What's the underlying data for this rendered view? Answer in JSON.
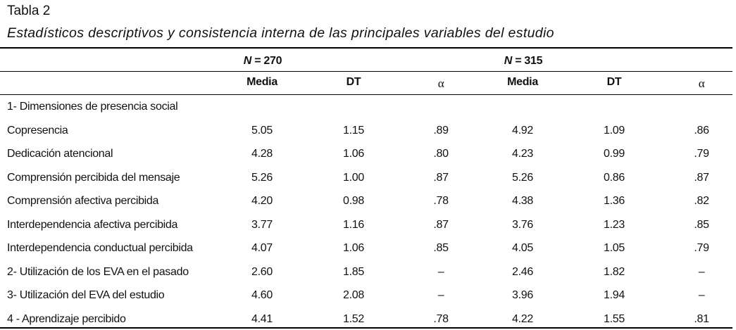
{
  "header": {
    "label": "Tabla 2",
    "title": "Estadísticos descriptivos y consistencia interna de las principales variables del estudio"
  },
  "table": {
    "groups": [
      {
        "n": "N",
        "text": " = 270"
      },
      {
        "n": "N",
        "text": " = 315"
      }
    ],
    "columns": [
      "Media",
      "DT",
      "α",
      "Media",
      "DT",
      "α"
    ],
    "rows": [
      [
        "1- Dimensiones de presencia social"
      ],
      [
        "Copresencia",
        "5.05",
        "1.15",
        ".89",
        "4.92",
        "1.09",
        ".86"
      ],
      [
        "Dedicación atencional",
        "4.28",
        "1.06",
        ".80",
        "4.23",
        "0.99",
        ".79"
      ],
      [
        "Comprensión percibida del mensaje",
        "5.26",
        "1.00",
        ".87",
        "5.26",
        "0.86",
        ".87"
      ],
      [
        "Comprensión afectiva percibida",
        "4.20",
        "0.98",
        ".78",
        "4.38",
        "1.36",
        ".82"
      ],
      [
        "Interdependencia afectiva percibida",
        "3.77",
        "1.16",
        ".87",
        "3.76",
        "1.23",
        ".85"
      ],
      [
        "Interdependencia conductual percibida",
        "4.07",
        "1.06",
        ".85",
        "4.05",
        "1.05",
        ".79"
      ],
      [
        "2- Utilización de los EVA en el pasado",
        "2.60",
        "1.85",
        "–",
        "2.46",
        "1.82",
        "–"
      ],
      [
        "3- Utilización del EVA del estudio",
        "4.60",
        "2.08",
        "–",
        "3.96",
        "1.94",
        "–"
      ],
      [
        "4 - Aprendizaje percibido",
        "4.41",
        "1.52",
        ".78",
        "4.22",
        "1.55",
        ".81"
      ]
    ]
  }
}
